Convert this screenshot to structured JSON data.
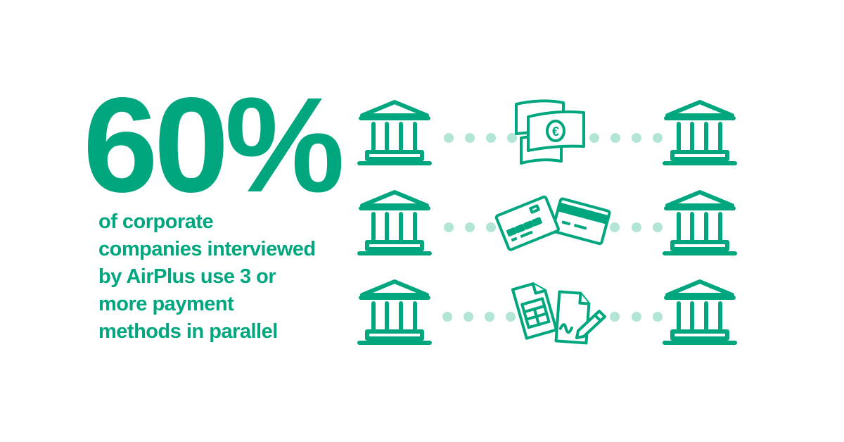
{
  "headline": {
    "stat": "60%"
  },
  "description": {
    "lines": [
      "of corporate",
      "companies interviewed",
      "by AirPlus use 3 or",
      "more payment",
      "methods in parallel"
    ]
  },
  "rows": [
    {
      "from_icon": "bank-icon",
      "method_icon": "euro-banknotes-icon",
      "to_icon": "bank-icon"
    },
    {
      "from_icon": "bank-icon",
      "method_icon": "credit-cards-icon",
      "to_icon": "bank-icon"
    },
    {
      "from_icon": "bank-icon",
      "method_icon": "invoice-documents-icon",
      "to_icon": "bank-icon"
    }
  ],
  "colors": {
    "accent": "#00a77e",
    "dots": "#b3e5d7",
    "background": "#ffffff"
  }
}
